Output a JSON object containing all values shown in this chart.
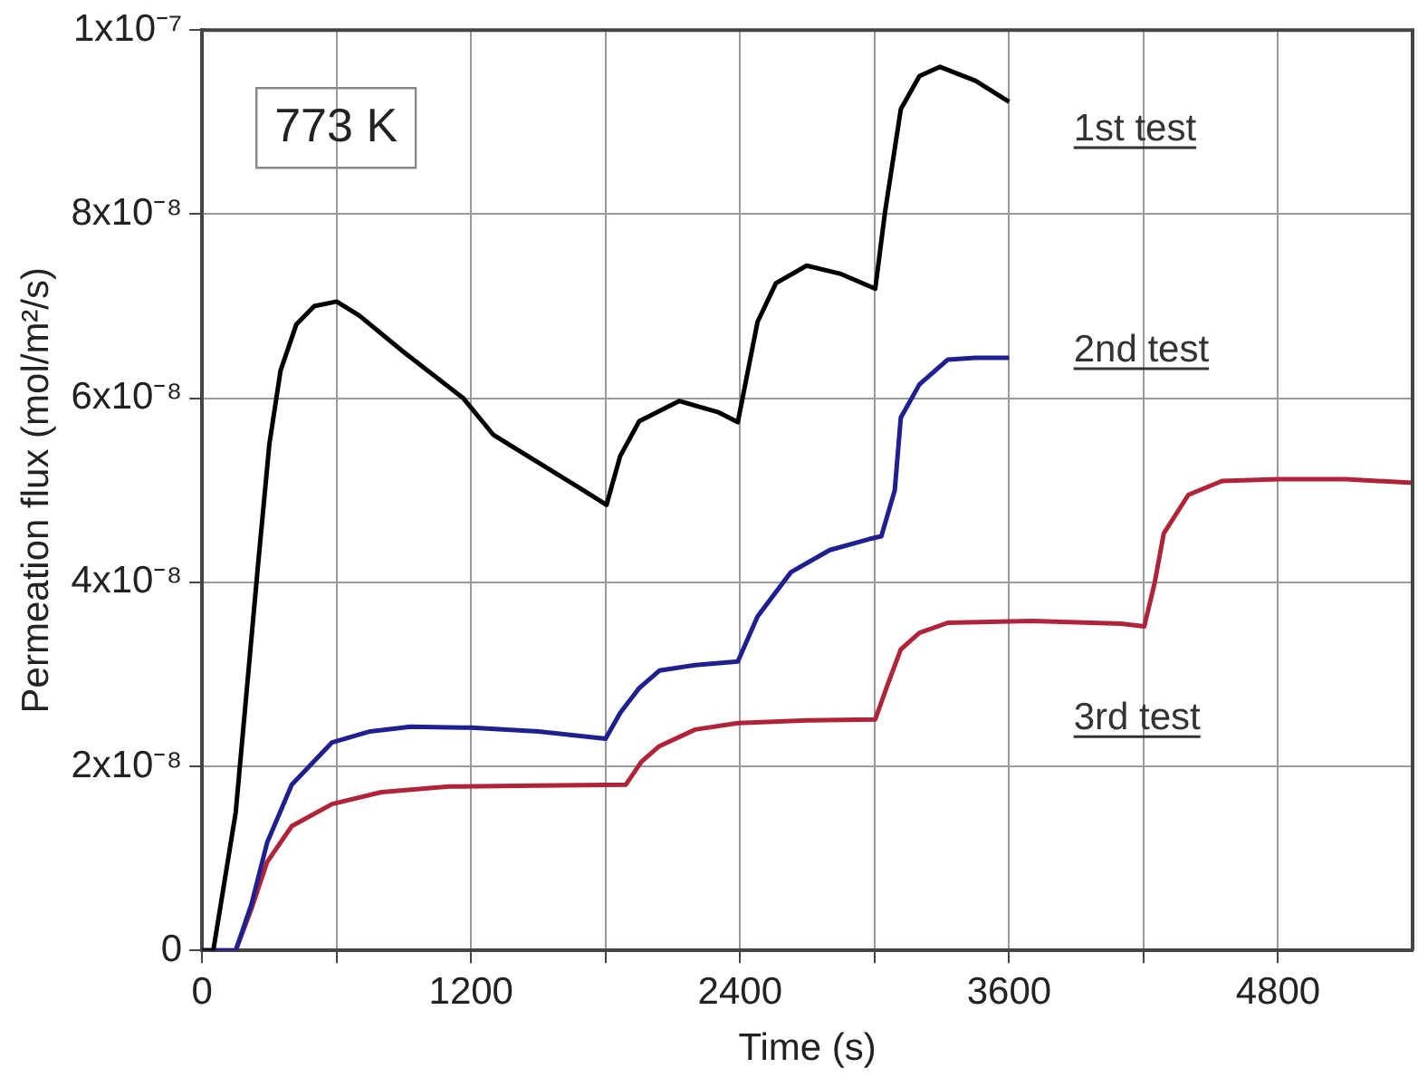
{
  "chart_data": {
    "type": "line",
    "xlabel": "Time (s)",
    "ylabel": "Permeation flux (mol/m²/s)",
    "xlim": [
      0,
      5400
    ],
    "xticks": [
      0,
      {
        "value": 600,
        "label": null
      },
      1200,
      {
        "value": 1800,
        "label": null
      },
      2400,
      {
        "value": 3000,
        "label": null
      },
      3600,
      {
        "value": 4200,
        "label": null
      },
      4800
    ],
    "ylim": [
      0,
      1e-07
    ],
    "yticks": [
      0,
      {
        "value": 2e-08,
        "label": "2x10⁻⁸"
      },
      {
        "value": 4e-08,
        "label": "4x10⁻⁸"
      },
      {
        "value": 6e-08,
        "label": "6x10⁻⁸"
      },
      {
        "value": 8e-08,
        "label": "8x10⁻⁸"
      },
      {
        "value": 1e-07,
        "label": "1x10⁻⁷"
      }
    ],
    "grid": true,
    "legend": false,
    "marker": "none",
    "line_style": "solid",
    "annotations": [
      "773 K"
    ],
    "series": [
      {
        "name": "1st test",
        "color": "#000000",
        "x": [
          0,
          50,
          150,
          250,
          300,
          350,
          420,
          500,
          600,
          700,
          900,
          1165,
          1300,
          1500,
          1700,
          1804,
          1865,
          1950,
          2128,
          2300,
          2390,
          2478,
          2560,
          2697,
          2850,
          3003,
          3047,
          3117,
          3200,
          3292,
          3450,
          3600
        ],
        "values": [
          0,
          0,
          1.5e-08,
          4.2e-08,
          5.5e-08,
          6.3e-08,
          6.8e-08,
          7e-08,
          7.05e-08,
          6.9e-08,
          6.5e-08,
          6e-08,
          5.6e-08,
          5.3e-08,
          5e-08,
          4.84e-08,
          5.37e-08,
          5.75e-08,
          5.97e-08,
          5.85e-08,
          5.74e-08,
          6.83e-08,
          7.25e-08,
          7.44e-08,
          7.35e-08,
          7.19e-08,
          8.03e-08,
          9.14e-08,
          9.5e-08,
          9.6e-08,
          9.45e-08,
          9.22e-08
        ]
      },
      {
        "name": "2nd test",
        "color": "#1f1f8f",
        "x": [
          0,
          150,
          220,
          290,
          400,
          580,
          750,
          930,
          1200,
          1500,
          1800,
          1865,
          1950,
          2040,
          2200,
          2390,
          2478,
          2627,
          2800,
          2977,
          3030,
          3090,
          3117,
          3200,
          3327,
          3450,
          3600
        ],
        "values": [
          0,
          0,
          5e-09,
          1.17e-08,
          1.8e-08,
          2.26e-08,
          2.38e-08,
          2.43e-08,
          2.42e-08,
          2.38e-08,
          2.3e-08,
          2.58e-08,
          2.85e-08,
          3.04e-08,
          3.1e-08,
          3.14e-08,
          3.63e-08,
          4.11e-08,
          4.35e-08,
          4.47e-08,
          4.5e-08,
          5e-08,
          5.79e-08,
          6.15e-08,
          6.42e-08,
          6.44e-08,
          6.44e-08
        ]
      },
      {
        "name": "3rd test",
        "color": "#b0243a",
        "x": [
          0,
          150,
          220,
          290,
          400,
          580,
          800,
          1100,
          1500,
          1890,
          1960,
          2040,
          2200,
          2390,
          2700,
          3003,
          3060,
          3117,
          3200,
          3327,
          3700,
          4100,
          4203,
          4250,
          4290,
          4400,
          4550,
          4800,
          5100,
          5400
        ],
        "values": [
          0,
          0,
          4.5e-09,
          9.6e-09,
          1.35e-08,
          1.59e-08,
          1.72e-08,
          1.78e-08,
          1.79e-08,
          1.8e-08,
          2.05e-08,
          2.22e-08,
          2.4e-08,
          2.47e-08,
          2.5e-08,
          2.51e-08,
          2.9e-08,
          3.27e-08,
          3.45e-08,
          3.56e-08,
          3.58e-08,
          3.55e-08,
          3.52e-08,
          4e-08,
          4.53e-08,
          4.95e-08,
          5.1e-08,
          5.12e-08,
          5.12e-08,
          5.08e-08
        ]
      }
    ]
  }
}
